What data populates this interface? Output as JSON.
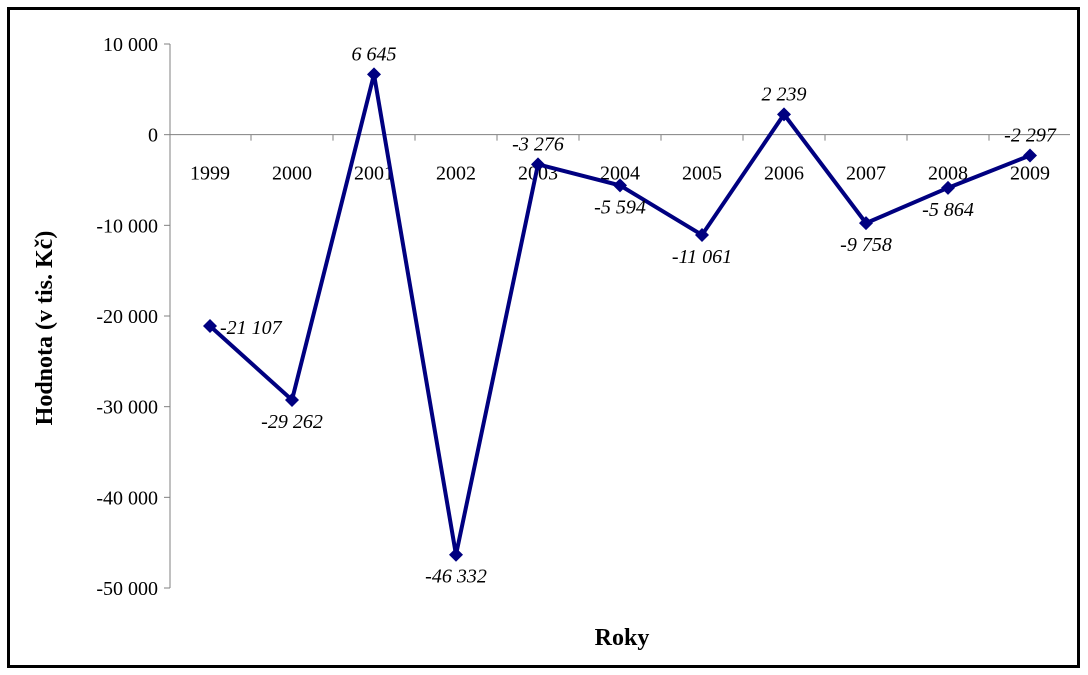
{
  "chart_data": {
    "type": "line",
    "title": "",
    "xlabel": "Roky",
    "ylabel": "Hodnota (v tis. Kč)",
    "categories": [
      "1999",
      "2000",
      "2001",
      "2002",
      "2003",
      "2004",
      "2005",
      "2006",
      "2007",
      "2008",
      "2009"
    ],
    "series": [
      {
        "values": [
          -21107,
          -29262,
          6645,
          -46332,
          -3276,
          -5594,
          -11061,
          2239,
          -9758,
          -5864,
          -2297
        ],
        "data_labels": [
          "-21 107",
          "-29 262",
          "6 645",
          "-46 332",
          "-3 276",
          "-5 594",
          "-11 061",
          "2 239",
          "-9 758",
          "-5 864",
          "-2 297"
        ],
        "color": "#000080",
        "marker": "diamond"
      }
    ],
    "ylim": [
      -50000,
      10000
    ],
    "yticks": [
      10000,
      0,
      -10000,
      -20000,
      -30000,
      -40000,
      -50000
    ],
    "ytick_labels": [
      "10 000",
      "0",
      "-10 000",
      "-20 000",
      "-30 000",
      "-40 000",
      "-50 000"
    ],
    "grid": false,
    "legend": "none",
    "colors": {
      "line": "#000080",
      "axis": "#808080",
      "frame": "#000000"
    }
  }
}
